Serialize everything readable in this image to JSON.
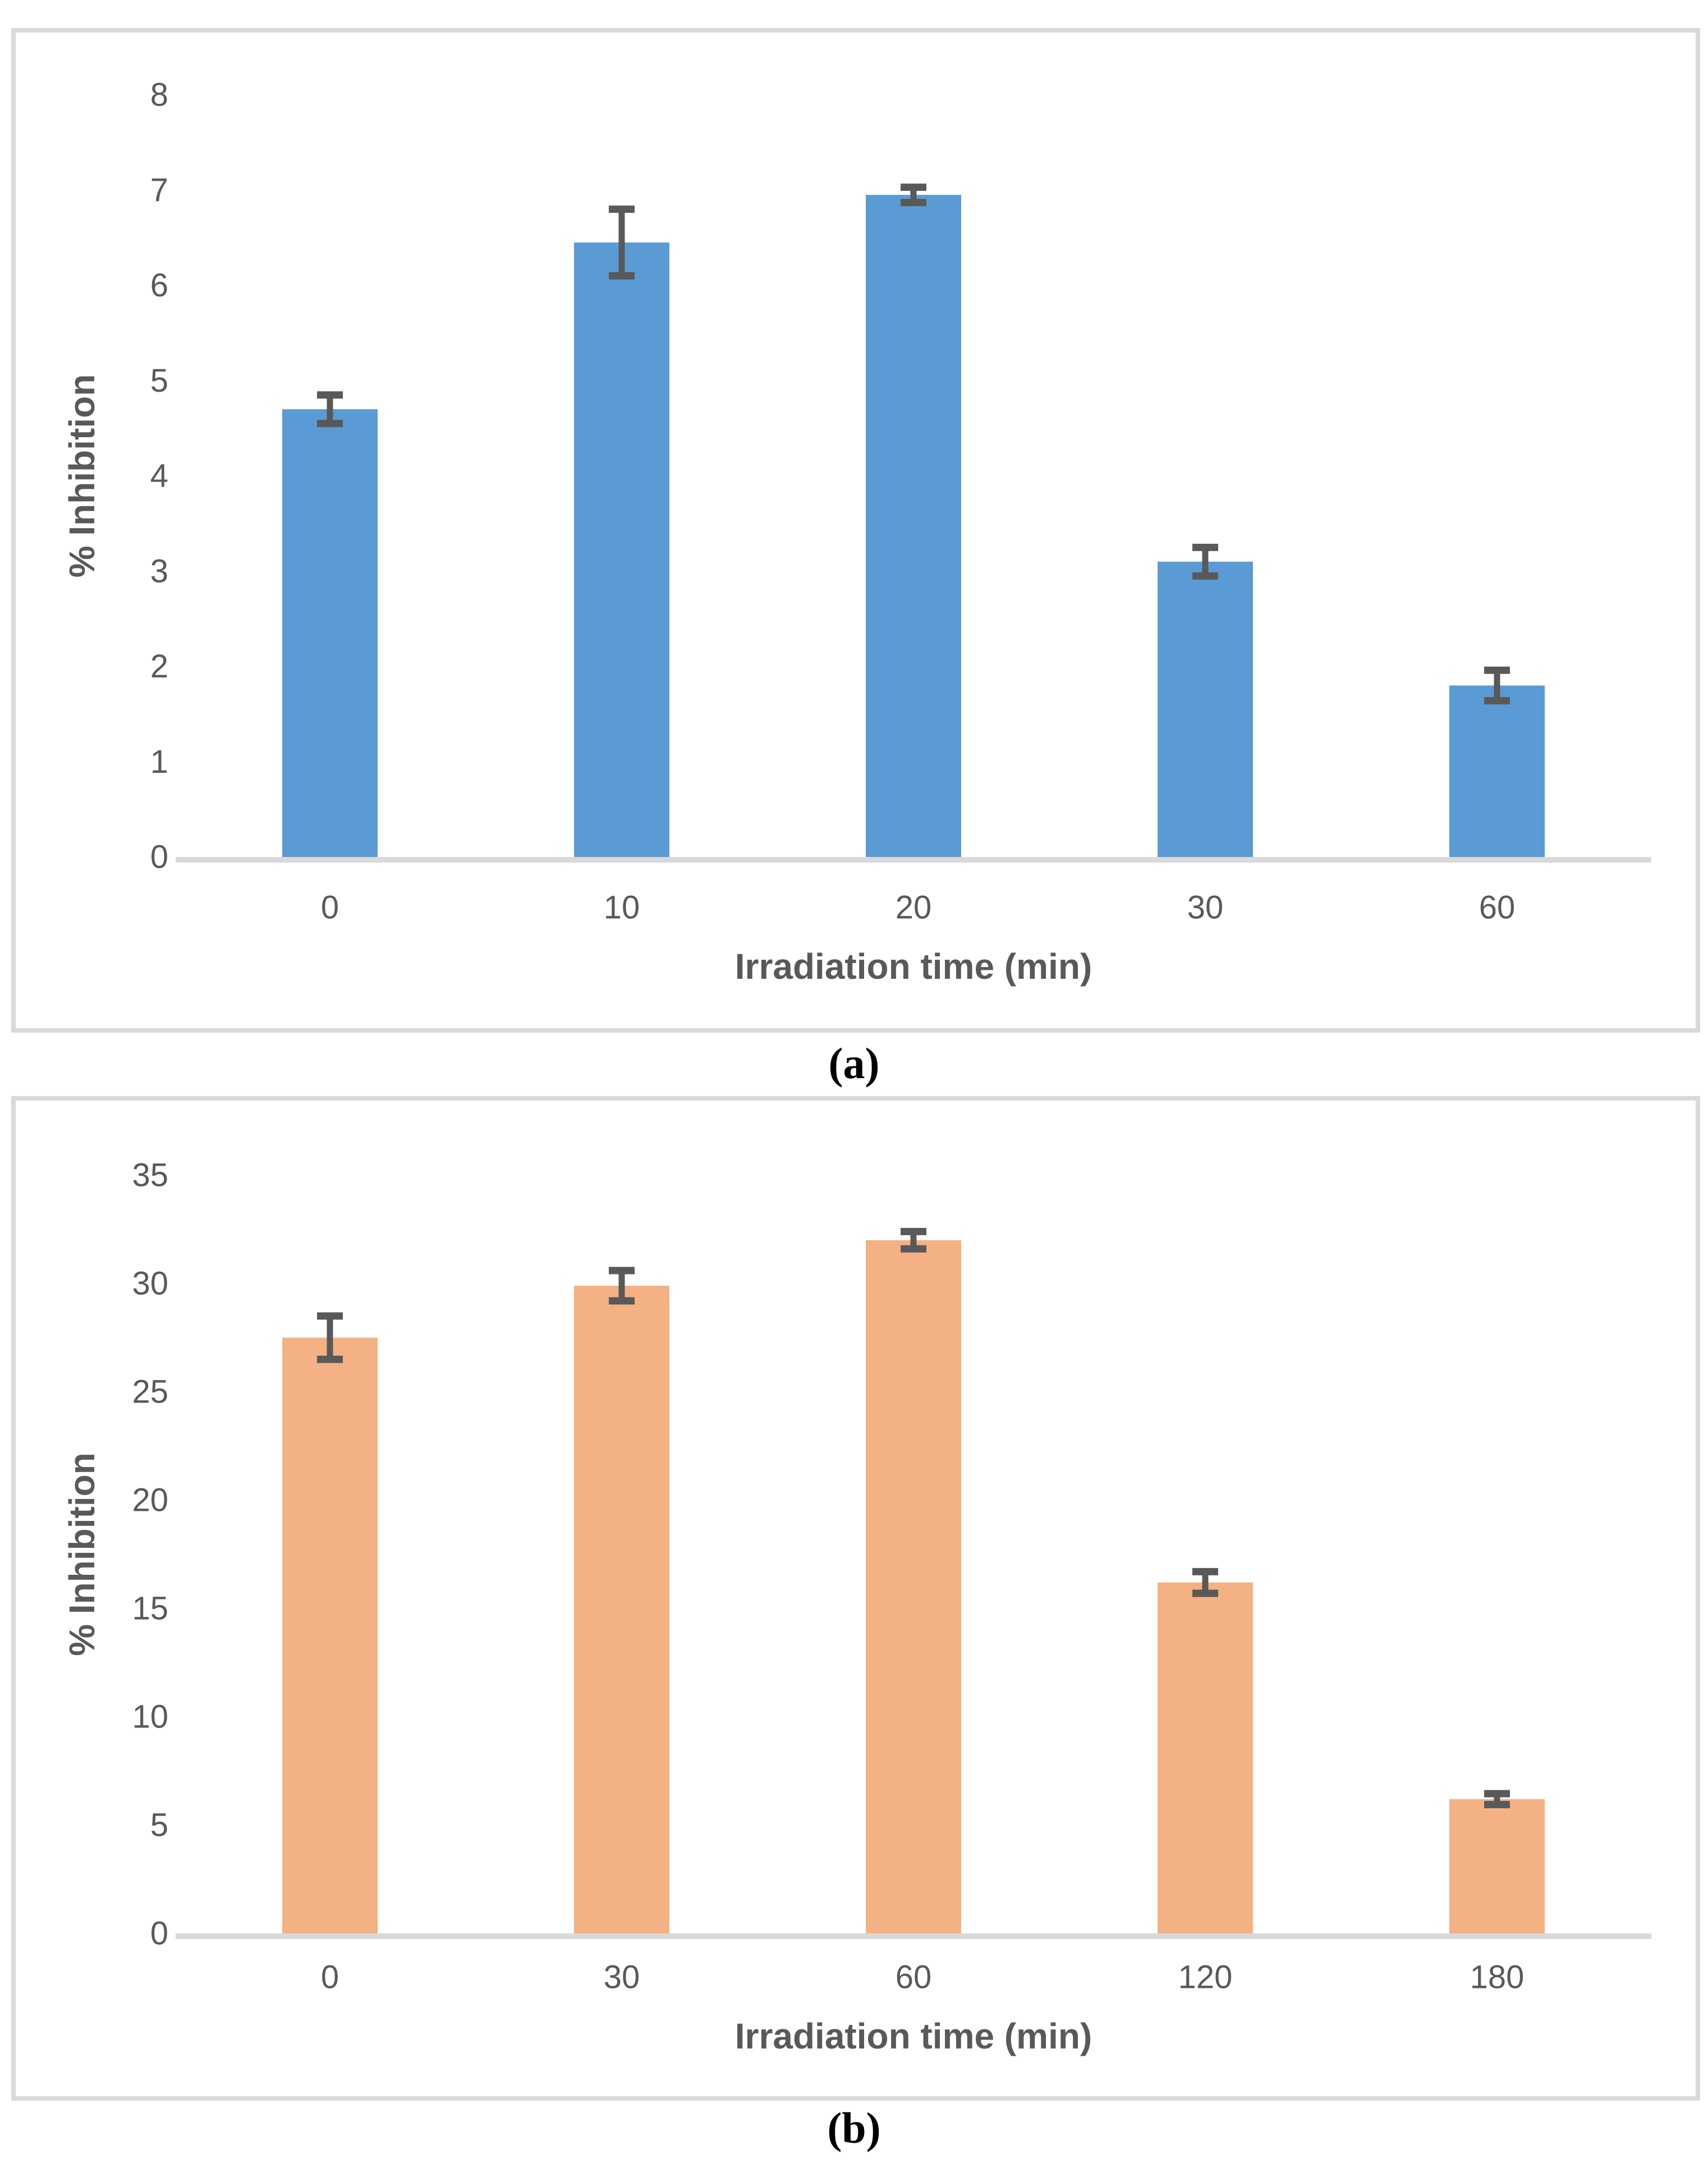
{
  "figure": {
    "background": "#FFFFFF",
    "captions": {
      "a": "(a)",
      "b": "(b)"
    }
  },
  "chart_data": [
    {
      "id": "a",
      "type": "bar",
      "title": "",
      "categories": [
        "0",
        "10",
        "20",
        "30",
        "60"
      ],
      "values": [
        4.7,
        6.45,
        6.95,
        3.1,
        1.8
      ],
      "errors": [
        0.15,
        0.35,
        0.08,
        0.15,
        0.16
      ],
      "xlabel": "Irradiation time (min)",
      "ylabel": "% Inhibition",
      "ylim": [
        0,
        8
      ],
      "yticks": [
        0,
        1,
        2,
        3,
        4,
        5,
        6,
        7,
        8
      ],
      "grid": false,
      "legend": "none",
      "bar_color": "#5B9BD5",
      "error_bar_color": "#595959",
      "axis_line_color": "#D9D9D9",
      "text_color": "#595959"
    },
    {
      "id": "b",
      "type": "bar",
      "title": "",
      "categories": [
        "0",
        "30",
        "60",
        "120",
        "180"
      ],
      "values": [
        27.5,
        29.9,
        32,
        16.2,
        6.2
      ],
      "errors": [
        1.0,
        0.7,
        0.4,
        0.5,
        0.25
      ],
      "xlabel": "Irradiation time (min)",
      "ylabel": "% Inhibition",
      "ylim": [
        0,
        35
      ],
      "yticks": [
        0,
        5,
        10,
        15,
        20,
        25,
        30,
        35
      ],
      "grid": false,
      "legend": "none",
      "bar_color": "#F4B183",
      "error_bar_color": "#595959",
      "axis_line_color": "#D9D9D9",
      "text_color": "#595959"
    }
  ]
}
